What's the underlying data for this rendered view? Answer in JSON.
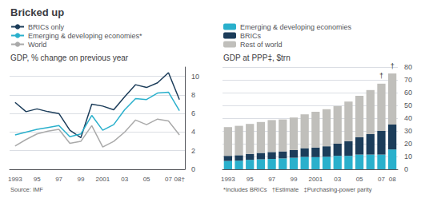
{
  "chart_data": [
    {
      "type": "line",
      "title": "Bricked up",
      "subtitle": "GDP, % change on previous year",
      "annotations": [
        {
          "text": "Source: IMF"
        }
      ],
      "categories": [
        "1993",
        null,
        "95",
        null,
        "97",
        null,
        "99",
        null,
        "2001",
        null,
        "03",
        null,
        "05",
        null,
        "07",
        "08†"
      ],
      "series": [
        {
          "name": "BRICs only",
          "color": "#1c3d5a",
          "values": [
            7.2,
            6.2,
            6.5,
            6.2,
            6.0,
            4.2,
            3.4,
            7.0,
            6.8,
            6.4,
            7.8,
            9.1,
            8.8,
            9.3,
            10.4,
            7.5
          ]
        },
        {
          "name": "Emerging & developing economies*",
          "color": "#2ab0cc",
          "values": [
            3.7,
            4.0,
            4.3,
            4.5,
            4.7,
            3.5,
            3.8,
            5.8,
            4.2,
            4.8,
            6.4,
            7.6,
            7.5,
            8.2,
            8.3,
            6.3
          ]
        },
        {
          "name": "World",
          "color": "#aaaaaa",
          "values": [
            2.5,
            3.2,
            3.8,
            4.1,
            4.3,
            2.8,
            3.0,
            4.7,
            2.4,
            3.0,
            4.0,
            5.3,
            4.8,
            5.4,
            5.2,
            3.7
          ]
        }
      ],
      "ylim": [
        0,
        11
      ],
      "yticks": [
        0,
        2,
        4,
        6,
        8,
        10
      ],
      "grid": true,
      "legend": "top-left"
    },
    {
      "type": "bar",
      "stacked": true,
      "subtitle": "GDP at PPP‡, $trn",
      "annotations": [
        {
          "text": "*Includes BRICs   †Estimate   ‡Purchasing-power parity"
        },
        {
          "text": "†",
          "x": "07"
        },
        {
          "text": "†",
          "x": "08"
        }
      ],
      "categories": [
        "1993",
        null,
        "95",
        null,
        "97",
        null,
        "99",
        null,
        "2001",
        null,
        "03",
        null,
        "05",
        null,
        "07",
        "08"
      ],
      "series": [
        {
          "name": "Emerging & developing economies",
          "color": "#2ab0cc",
          "values": [
            6.5,
            6.7,
            7.4,
            7.8,
            8.1,
            8.5,
            9.0,
            9.7,
            9.5,
            9.8,
            10.5,
            10.5,
            11.5,
            11.5,
            11.5,
            15.5
          ]
        },
        {
          "name": "BRICs",
          "color": "#1c3d5a",
          "values": [
            4.0,
            4.3,
            4.6,
            5.0,
            5.4,
            5.5,
            6.0,
            6.8,
            7.5,
            8.2,
            9.5,
            11.5,
            13.5,
            16.0,
            18.5,
            19.5
          ]
        },
        {
          "name": "Rest of world",
          "color": "#c0bfbb",
          "values": [
            22.5,
            23,
            23.5,
            24.2,
            25,
            25,
            25.5,
            26.5,
            28,
            29,
            29.5,
            31,
            32.5,
            34.5,
            37,
            40
          ]
        }
      ],
      "ylim": [
        0,
        80
      ],
      "yticks": [
        0,
        10,
        20,
        30,
        40,
        50,
        60,
        70,
        80
      ],
      "grid": true,
      "legend": "top-left"
    }
  ]
}
